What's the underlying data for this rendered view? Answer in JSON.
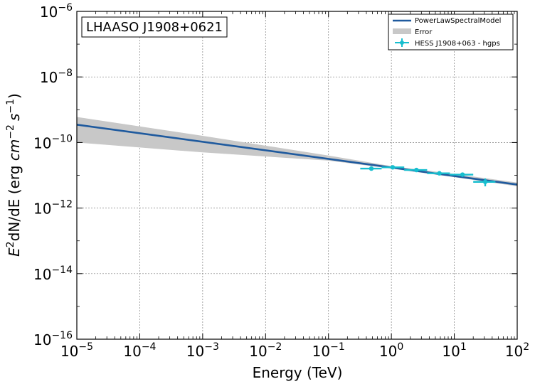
{
  "chart_data": {
    "type": "line",
    "source_label": "LHAASO J1908+0621",
    "xlabel": "Energy (TeV)",
    "ylabel": {
      "prefix": "E",
      "prefix_sup": "2",
      "main": "dN/dE (erg ",
      "u1": "cm",
      "u1_sup": "−2",
      "u2": "s",
      "u2_sup": "−1",
      "suffix": ")"
    },
    "x_scale": "log",
    "y_scale": "log",
    "xlim": [
      1e-05,
      100
    ],
    "ylim": [
      1e-16,
      1e-06
    ],
    "x_ticks": [
      {
        "base": "10",
        "exp": "−5",
        "value": 1e-05
      },
      {
        "base": "10",
        "exp": "−4",
        "value": 0.0001
      },
      {
        "base": "10",
        "exp": "−3",
        "value": 0.001
      },
      {
        "base": "10",
        "exp": "−2",
        "value": 0.01
      },
      {
        "base": "10",
        "exp": "−1",
        "value": 0.1
      },
      {
        "base": "10",
        "exp": "0",
        "value": 1
      },
      {
        "base": "10",
        "exp": "1",
        "value": 10
      },
      {
        "base": "10",
        "exp": "2",
        "value": 100
      }
    ],
    "y_ticks": [
      {
        "base": "10",
        "exp": "−16",
        "value": 1e-16
      },
      {
        "base": "10",
        "exp": "−14",
        "value": 1e-14
      },
      {
        "base": "10",
        "exp": "−12",
        "value": 1e-12
      },
      {
        "base": "10",
        "exp": "−10",
        "value": 1e-10
      },
      {
        "base": "10",
        "exp": "−8",
        "value": 1e-08
      },
      {
        "base": "10",
        "exp": "−6",
        "value": 1e-06
      }
    ],
    "grid": true,
    "legend_position": "top-right",
    "series": [
      {
        "name": "PowerLawSpectralModel",
        "kind": "line",
        "color": "#1f5a9e",
        "x": [
          1e-05,
          100
        ],
        "y": [
          3.5e-10,
          5.2e-12
        ]
      },
      {
        "name": "Error",
        "kind": "band",
        "color": "#c8c8c8",
        "x": [
          1e-05,
          0.001,
          0.1,
          1,
          10,
          100
        ],
        "y_low": [
          1e-10,
          5e-11,
          2.8e-11,
          1.6e-11,
          8.8e-12,
          4.6e-12
        ],
        "y_high": [
          6e-10,
          1.6e-10,
          4e-11,
          1.9e-11,
          1.1e-11,
          6e-12
        ]
      },
      {
        "name": "HESS J1908+063 - hgps",
        "kind": "errorbar",
        "color": "#17becf",
        "points": [
          {
            "x": 0.48,
            "y": 1.6e-11,
            "xlo": 0.32,
            "xhi": 0.7,
            "ylo": 1.4e-11,
            "yhi": 1.85e-11
          },
          {
            "x": 1.05,
            "y": 1.75e-11,
            "xlo": 0.7,
            "xhi": 1.6,
            "ylo": 1.6e-11,
            "yhi": 1.9e-11
          },
          {
            "x": 2.5,
            "y": 1.45e-11,
            "xlo": 1.6,
            "xhi": 3.7,
            "ylo": 1.35e-11,
            "yhi": 1.55e-11
          },
          {
            "x": 5.8,
            "y": 1.15e-11,
            "xlo": 3.7,
            "xhi": 8.5,
            "ylo": 1.05e-11,
            "yhi": 1.25e-11
          },
          {
            "x": 13.5,
            "y": 1.05e-11,
            "xlo": 8.5,
            "xhi": 20,
            "ylo": 9e-12,
            "yhi": 1.2e-11
          },
          {
            "x": 31,
            "y": 6.3e-12,
            "xlo": 20,
            "xhi": 45,
            "ylo": 4.6e-12,
            "yhi": 8e-12
          }
        ]
      }
    ]
  }
}
